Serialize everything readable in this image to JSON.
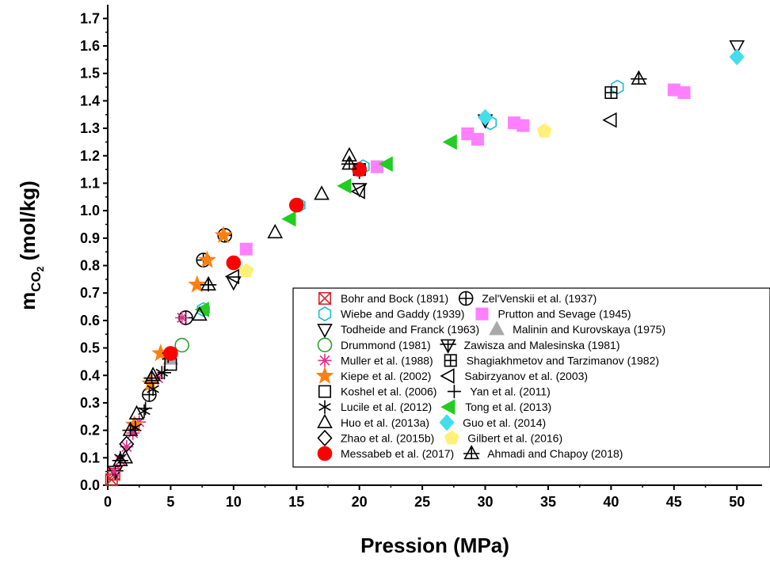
{
  "chart_data": {
    "type": "scatter",
    "xlabel": "Pression (MPa)",
    "ylabel_main": "m",
    "ylabel_sub": "CO",
    "ylabel_subsub": "2",
    "ylabel_unit": " (mol/kg)",
    "xlim": [
      0,
      52
    ],
    "ylim": [
      0,
      1.75
    ],
    "xticks": [
      0,
      5,
      10,
      15,
      20,
      25,
      30,
      35,
      40,
      45,
      50
    ],
    "yticks": [
      0.0,
      0.1,
      0.2,
      0.3,
      0.4,
      0.5,
      0.6,
      0.7,
      0.8,
      0.9,
      1.0,
      1.1,
      1.2,
      1.3,
      1.4,
      1.5,
      1.6,
      1.7
    ],
    "xtick_labels": [
      "0",
      "5",
      "10",
      "15",
      "20",
      "25",
      "30",
      "35",
      "40",
      "45",
      "50"
    ],
    "ytick_labels": [
      "0.0",
      "0.1",
      "0.2",
      "0.3",
      "0.4",
      "0.5",
      "0.6",
      "0.7",
      "0.8",
      "0.9",
      "1.0",
      "1.1",
      "1.2",
      "1.3",
      "1.4",
      "1.5",
      "1.6",
      "1.7"
    ],
    "legend_position": "bottom-right",
    "series": [
      {
        "name": "Bohr and Bock (1891)",
        "marker": "square-x",
        "color": "#d62728",
        "fill": "none",
        "points": [
          [
            0.3,
            0.02
          ],
          [
            0.5,
            0.04
          ]
        ]
      },
      {
        "name": "Zel'Venskii et al. (1937)",
        "marker": "circle-plus",
        "color": "#000000",
        "fill": "none",
        "points": [
          [
            3.3,
            0.33
          ],
          [
            6.2,
            0.61
          ],
          [
            7.6,
            0.82
          ],
          [
            9.3,
            0.91
          ]
        ]
      },
      {
        "name": "Wiebe and Gaddy (1939)",
        "marker": "hexagon",
        "color": "#17becf",
        "fill": "none",
        "points": [
          [
            7.6,
            0.64
          ],
          [
            15.2,
            1.02
          ],
          [
            20.3,
            1.16
          ],
          [
            30.4,
            1.32
          ],
          [
            40.5,
            1.45
          ]
        ]
      },
      {
        "name": "Prutton and Sevage (1945)",
        "marker": "square",
        "color": "#ff80ff",
        "fill": "#ff80ff",
        "points": [
          [
            11.0,
            0.86
          ],
          [
            21.4,
            1.16
          ],
          [
            28.6,
            1.28
          ],
          [
            29.4,
            1.26
          ],
          [
            32.3,
            1.32
          ],
          [
            33.0,
            1.31
          ],
          [
            45.0,
            1.44
          ],
          [
            45.8,
            1.43
          ]
        ]
      },
      {
        "name": "Todheide and Franck (1963)",
        "marker": "triangle-down",
        "color": "#000000",
        "fill": "none",
        "points": [
          [
            10.0,
            0.74
          ],
          [
            20.0,
            1.08
          ],
          [
            30.0,
            1.33
          ],
          [
            50.0,
            1.6
          ]
        ]
      },
      {
        "name": "Malinin and Kurovskaya (1975)",
        "marker": "triangle-up",
        "color": "#a9a9a9",
        "fill": "#a9a9a9",
        "points": [
          [
            5.0,
            0.46
          ]
        ]
      },
      {
        "name": "Drummond (1981)",
        "marker": "circle",
        "color": "#2ca02c",
        "fill": "none",
        "points": [
          [
            5.9,
            0.51
          ]
        ]
      },
      {
        "name": "Zawisza and Malesinska (1981)",
        "marker": "triangle-down-bar",
        "color": "#000000",
        "fill": "none",
        "points": [
          [
            0.6,
            0.05
          ]
        ]
      },
      {
        "name": "Muller et al. (1988)",
        "marker": "asterisk",
        "color": "#e7298a",
        "fill": "none",
        "points": [
          [
            0.5,
            0.05
          ],
          [
            1.0,
            0.09
          ],
          [
            1.5,
            0.14
          ],
          [
            2.0,
            0.19
          ],
          [
            2.5,
            0.23
          ],
          [
            4.0,
            0.39
          ],
          [
            5.9,
            0.61
          ]
        ]
      },
      {
        "name": "Shagiakhmetov and Tarzimanov (1982)",
        "marker": "square-plus",
        "color": "#000000",
        "fill": "none",
        "points": [
          [
            20.0,
            1.15
          ],
          [
            40.0,
            1.43
          ]
        ]
      },
      {
        "name": "Kiepe et al. (2002)",
        "marker": "star",
        "color": "#ff7f0e",
        "fill": "#ff7f0e",
        "points": [
          [
            2.1,
            0.22
          ],
          [
            3.4,
            0.37
          ],
          [
            4.2,
            0.48
          ],
          [
            7.1,
            0.73
          ],
          [
            7.9,
            0.82
          ],
          [
            9.2,
            0.91
          ]
        ]
      },
      {
        "name": "Sabirzyanov et al. (2003)",
        "marker": "triangle-left",
        "color": "#000000",
        "fill": "none",
        "points": [
          [
            10.0,
            0.76
          ],
          [
            20.0,
            1.07
          ],
          [
            40.0,
            1.33
          ]
        ]
      },
      {
        "name": "Koshel et al. (2006)",
        "marker": "square",
        "color": "#000000",
        "fill": "none",
        "points": [
          [
            5.0,
            0.44
          ],
          [
            20.0,
            1.15
          ]
        ]
      },
      {
        "name": "Yan et al. (2011)",
        "marker": "plus",
        "color": "#000000",
        "fill": "none",
        "points": [
          [
            3.0,
            0.28
          ],
          [
            4.5,
            0.41
          ],
          [
            8.0,
            0.73
          ],
          [
            10.0,
            0.81
          ],
          [
            20.0,
            1.14
          ]
        ]
      },
      {
        "name": "Lucile et al. (2012)",
        "marker": "star6",
        "color": "#000000",
        "fill": "none",
        "points": [
          [
            1.0,
            0.1
          ],
          [
            2.2,
            0.21
          ],
          [
            2.9,
            0.27
          ],
          [
            3.6,
            0.35
          ],
          [
            4.3,
            0.41
          ],
          [
            4.8,
            0.47
          ]
        ]
      },
      {
        "name": "Tong et al. (2013)",
        "marker": "triangle-left",
        "color": "#22cc22",
        "fill": "#22cc22",
        "points": [
          [
            7.6,
            0.64
          ],
          [
            14.5,
            0.97
          ],
          [
            18.9,
            1.09
          ],
          [
            22.2,
            1.17
          ],
          [
            27.3,
            1.25
          ]
        ]
      },
      {
        "name": "Huo et al. (2013a)",
        "marker": "triangle-up",
        "color": "#000000",
        "fill": "none",
        "points": [
          [
            1.4,
            0.1
          ],
          [
            2.3,
            0.26
          ],
          [
            3.6,
            0.4
          ],
          [
            7.3,
            0.62
          ],
          [
            13.3,
            0.92
          ],
          [
            17.0,
            1.06
          ],
          [
            19.2,
            1.2
          ]
        ]
      },
      {
        "name": "Guo et al. (2014)",
        "marker": "diamond",
        "color": "#44ddee",
        "fill": "#44ddee",
        "points": [
          [
            30.0,
            1.34
          ],
          [
            50.0,
            1.56
          ]
        ]
      },
      {
        "name": "Zhao et al. (2015b)",
        "marker": "diamond",
        "color": "#000000",
        "fill": "none",
        "points": [
          [
            1.5,
            0.15
          ]
        ]
      },
      {
        "name": "Gilbert et al. (2016)",
        "marker": "pentagon",
        "color": "#fff07a",
        "fill": "#fff07a",
        "points": [
          [
            11.0,
            0.78
          ],
          [
            34.7,
            1.29
          ]
        ]
      },
      {
        "name": "Messabeb et al. (2017)",
        "marker": "circle",
        "color": "#ff0000",
        "fill": "#ff0000",
        "points": [
          [
            5.0,
            0.48
          ],
          [
            10.0,
            0.81
          ],
          [
            15.0,
            1.02
          ],
          [
            20.0,
            1.15
          ]
        ]
      },
      {
        "name": "Ahmadi and Chapoy (2018)",
        "marker": "triangle-up-bar",
        "color": "#000000",
        "fill": "none",
        "points": [
          [
            1.0,
            0.09
          ],
          [
            1.8,
            0.2
          ],
          [
            3.5,
            0.39
          ],
          [
            8.0,
            0.73
          ],
          [
            19.2,
            1.17
          ],
          [
            42.2,
            1.48
          ]
        ]
      }
    ],
    "legend_rows": [
      [
        0,
        1
      ],
      [
        2,
        3
      ],
      [
        4,
        5
      ],
      [
        6,
        7
      ],
      [
        8,
        9
      ],
      [
        10,
        11
      ],
      [
        12,
        13
      ],
      [
        14,
        15
      ],
      [
        16,
        17
      ],
      [
        18,
        19
      ],
      [
        20,
        21
      ]
    ]
  }
}
